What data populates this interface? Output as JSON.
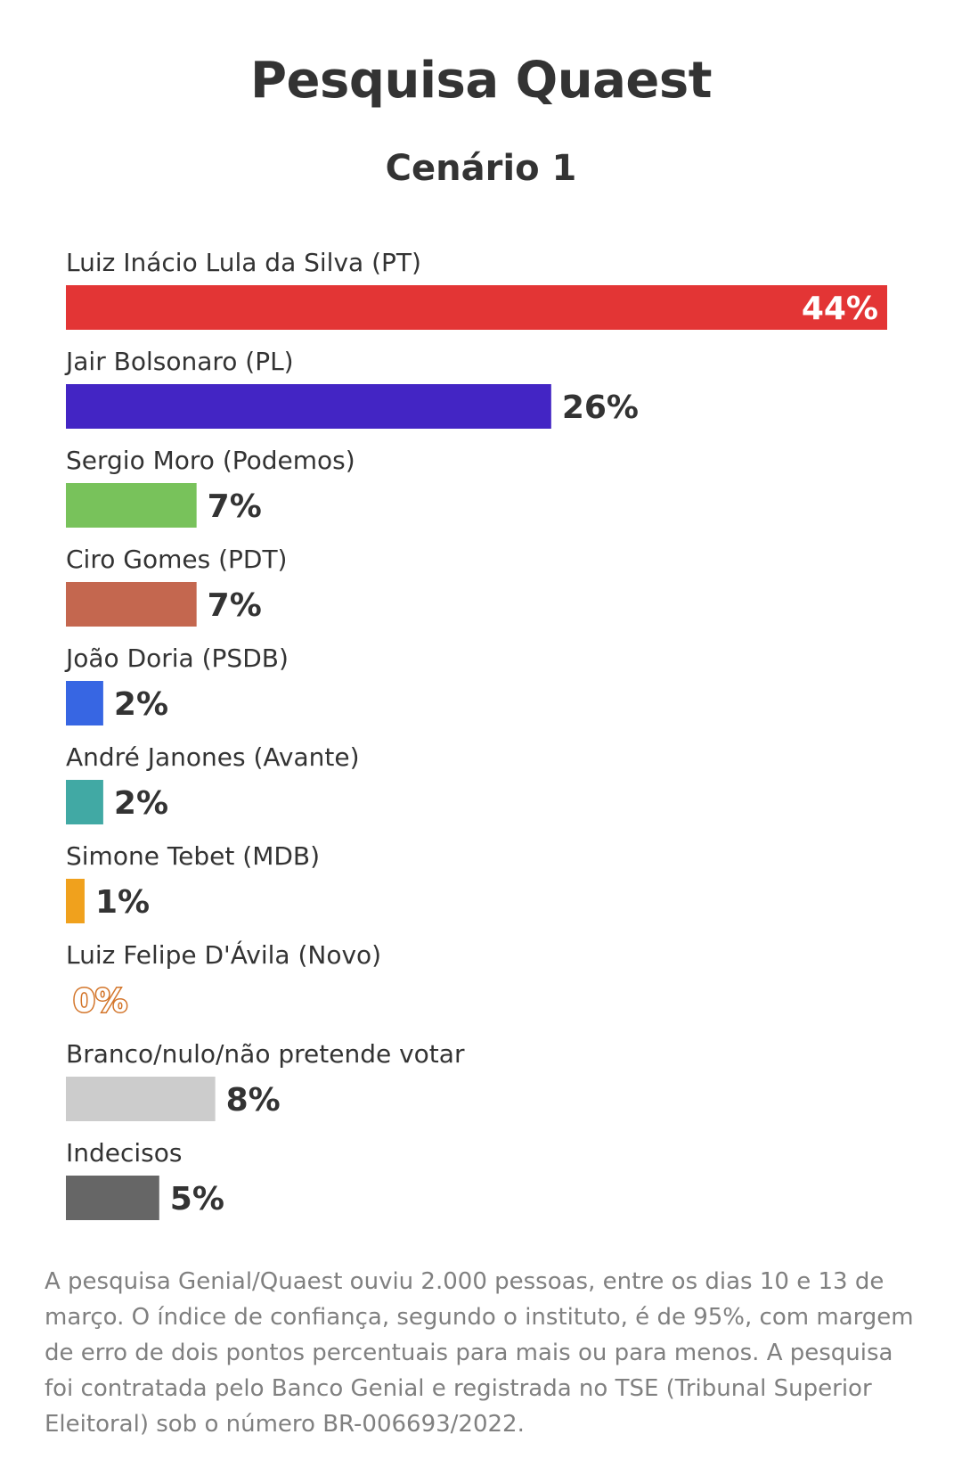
{
  "chart_data": {
    "type": "bar",
    "orientation": "horizontal",
    "title": "Pesquisa Quaest",
    "subtitle": "Cenário 1",
    "categories": [
      "Luiz Inácio Lula da Silva (PT)",
      "Jair Bolsonaro (PL)",
      "Sergio Moro (Podemos)",
      "Ciro Gomes (PDT)",
      "João Doria (PSDB)",
      "André Janones (Avante)",
      "Simone Tebet (MDB)",
      "Luiz Felipe D'Ávila (Novo)",
      "Branco/nulo/não pretende votar",
      "Indecisos"
    ],
    "values": [
      44,
      26,
      7,
      7,
      2,
      2,
      1,
      0,
      8,
      5
    ],
    "labels": [
      "44%",
      "26%",
      "7%",
      "7%",
      "2%",
      "2%",
      "1%",
      "0%",
      "8%",
      "5%"
    ],
    "colors": [
      "#e33535",
      "#4325c4",
      "#78c25b",
      "#c4674f",
      "#3766e3",
      "#41a9a4",
      "#f0a11d",
      "#d3752a",
      "#cccccc",
      "#666666"
    ],
    "xlim": [
      0,
      44
    ],
    "grid": false,
    "legend": "none"
  },
  "footnote": "A pesquisa Genial/Quaest ouviu 2.000 pessoas, entre os dias 10 e 13 de março. O índice de confiança, segundo o instituto, é de 95%, com margem de erro de dois pontos percentuais para mais ou para menos. A pesquisa foi contratada pelo Banco Genial e registrada no TSE (Tribunal Superior Eleitoral) sob o número BR-006693/2022."
}
